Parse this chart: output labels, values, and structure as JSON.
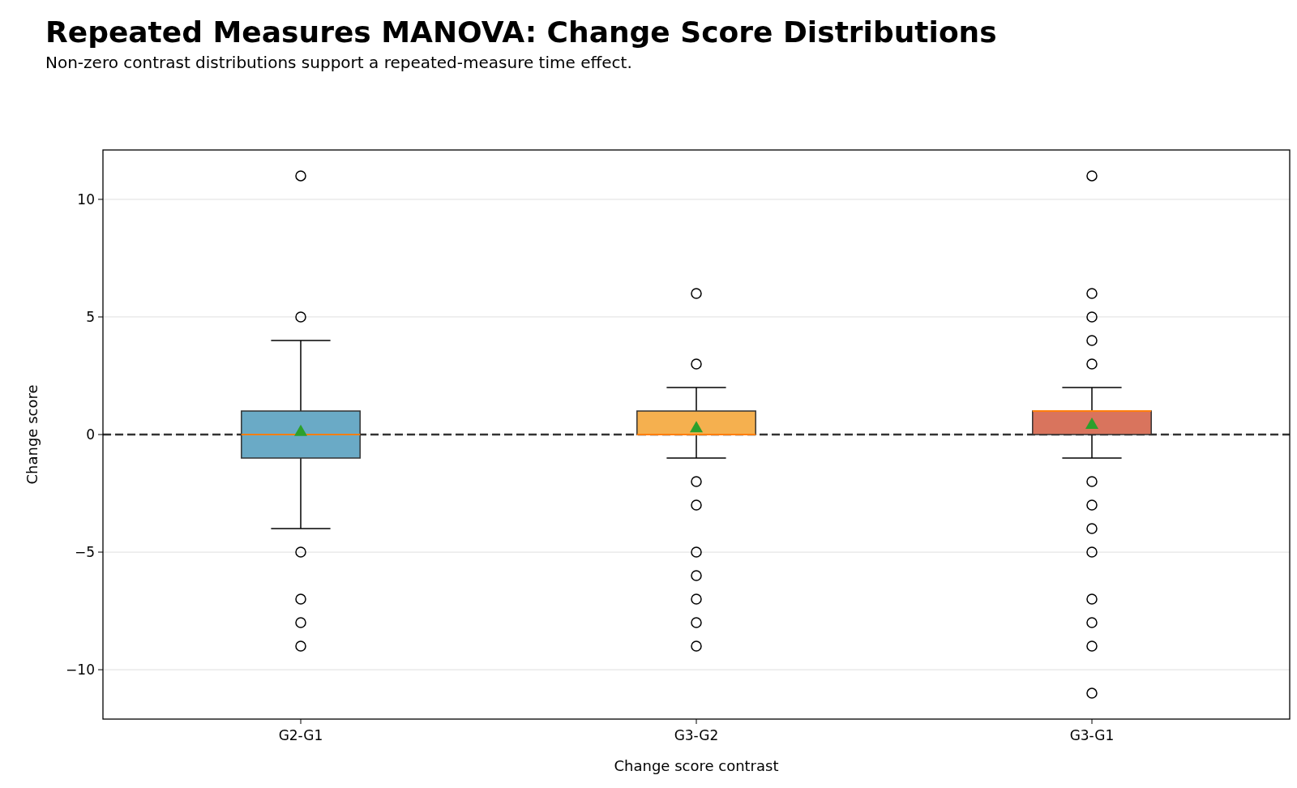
{
  "chart_data": {
    "type": "box",
    "title": "Repeated Measures MANOVA: Change Score Distributions",
    "subtitle": "Non-zero contrast distributions support a repeated-measure time effect.",
    "xlabel": "Change score contrast",
    "ylabel": "Change score",
    "categories": [
      "G2-G1",
      "G3-G2",
      "G3-G1"
    ],
    "colors": [
      "#6aaac6",
      "#f5b04f",
      "#d9745d"
    ],
    "boxes": [
      {
        "low": -4,
        "q1": -1,
        "median": 0,
        "q3": 1,
        "high": 4,
        "mean": 0.15,
        "outliers": [
          11,
          5,
          -5,
          -7,
          -8,
          -9
        ]
      },
      {
        "low": -1,
        "q1": 0,
        "median": 0,
        "q3": 1,
        "high": 2,
        "mean": 0.3,
        "outliers": [
          6,
          3,
          -2,
          -3,
          -5,
          -6,
          -7,
          -8,
          -9
        ]
      },
      {
        "low": -1,
        "q1": 0,
        "median": 1,
        "q3": 1,
        "high": 2,
        "mean": 0.45,
        "outliers": [
          11,
          6,
          5,
          4,
          3,
          -2,
          -3,
          -4,
          -5,
          -7,
          -8,
          -9,
          -11
        ]
      }
    ],
    "ylim": [
      -12.1,
      12.1
    ],
    "yticks": [
      {
        "value": -10,
        "label": "−10"
      },
      {
        "value": -5,
        "label": "−5"
      },
      0,
      5,
      10
    ],
    "grid": "y",
    "ref_lines": [
      {
        "axis": "y",
        "value": 0,
        "color": "#333333",
        "line_style": "dashed"
      }
    ]
  }
}
